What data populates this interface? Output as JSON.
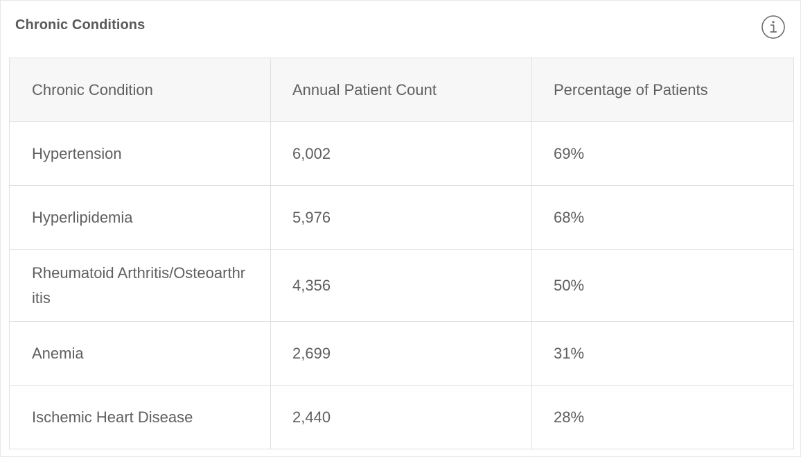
{
  "card": {
    "title": "Chronic Conditions",
    "info_icon": "info-circle-icon"
  },
  "table": {
    "headers": [
      "Chronic Condition",
      "Annual Patient Count",
      "Percentage of Patients"
    ],
    "rows": [
      [
        "Hypertension",
        "6,002",
        "69%"
      ],
      [
        "Hyperlipidemia",
        "5,976",
        "68%"
      ],
      [
        "Rheumatoid Arthritis/Osteoarthritis",
        "4,356",
        "50%"
      ],
      [
        "Anemia",
        "2,699",
        "31%"
      ],
      [
        "Ischemic Heart Disease",
        "2,440",
        "28%"
      ]
    ]
  },
  "colors": {
    "text": "#5f5f5f",
    "header_bg": "#f7f7f7",
    "border": "#e0e0e0",
    "icon": "#6b6b6b"
  }
}
